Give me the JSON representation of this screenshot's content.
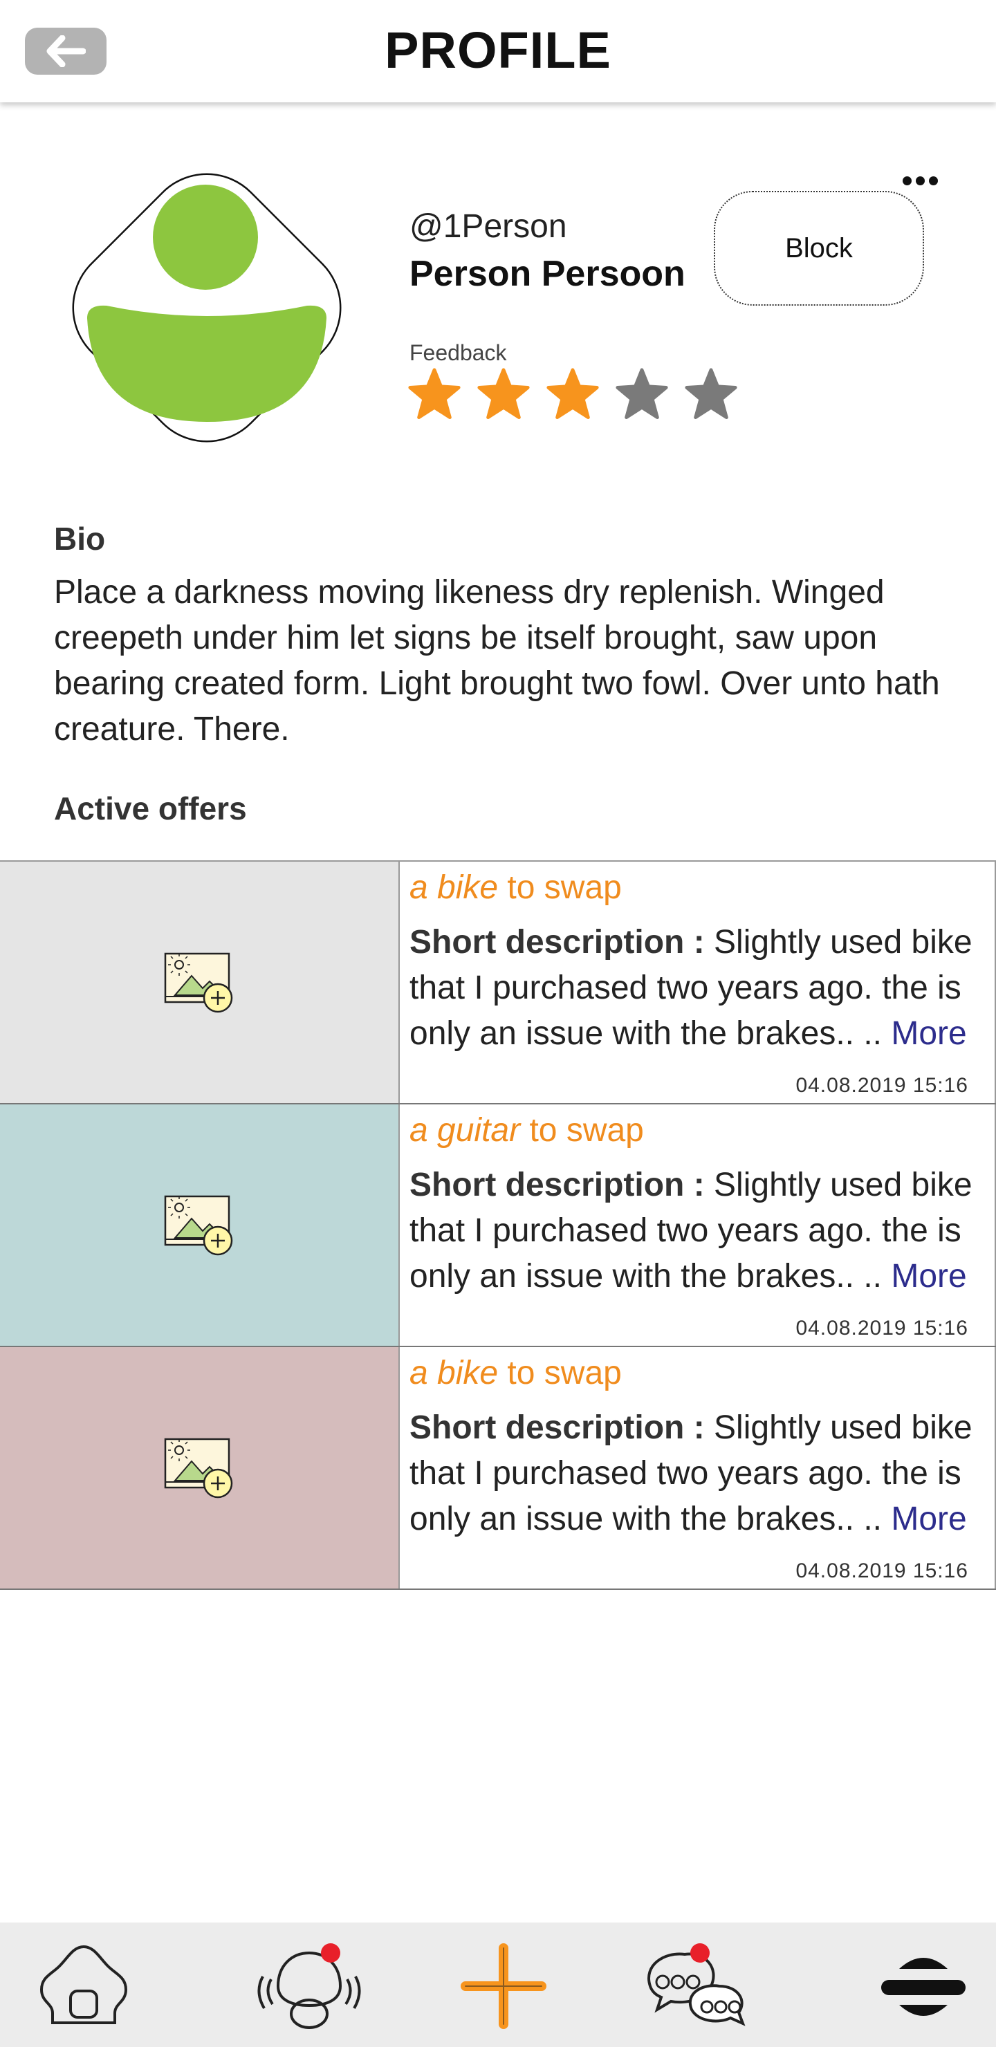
{
  "header": {
    "title": "PROFILE"
  },
  "profile": {
    "username": "@1Person",
    "full_name": "Person Persoon",
    "block_label": "Block",
    "feedback_label": "Feedback",
    "rating": 3,
    "rating_max": 5
  },
  "bio": {
    "heading": "Bio",
    "text": "Place a darkness moving likeness dry replenish. Winged creepeth under him let signs be itself brought, saw upon bearing created form. Light brought two fowl. Over unto hath creature. There."
  },
  "offers": {
    "heading": "Active offers",
    "items": [
      {
        "item": "a bike",
        "suffix": " to swap",
        "desc_label": "Short description :",
        "desc": " Slightly used bike that I purchased two years ago. the is only an issue with the brakes.. .. ",
        "more": "More",
        "date": "04.08.2019  15:16",
        "bg": "#e5e5e5"
      },
      {
        "item": "a guitar",
        "suffix": " to swap",
        "desc_label": "Short description :",
        "desc": " Slightly used bike that I purchased two years ago. the is only an issue with the brakes.. .. ",
        "more": "More",
        "date": "04.08.2019  15:16",
        "bg": "#bdd8d8"
      },
      {
        "item": "a bike",
        "suffix": " to swap",
        "desc_label": "Short description :",
        "desc": " Slightly used bike that I purchased two years ago. the is only an issue with the brakes.. .. ",
        "more": "More",
        "date": "04.08.2019  15:16",
        "bg": "#d5bcbc"
      }
    ]
  },
  "nav": {
    "items": [
      {
        "icon": "home-icon"
      },
      {
        "icon": "profile-notifications-icon",
        "badge": true
      },
      {
        "icon": "add-icon"
      },
      {
        "icon": "chat-icon",
        "badge": true
      },
      {
        "icon": "menu-icon"
      }
    ]
  },
  "colors": {
    "accent": "#f7941d",
    "star_off": "#7a7a7a",
    "avatar": "#8dc63f",
    "badge": "#e8202a",
    "link": "#2c2c8c"
  }
}
